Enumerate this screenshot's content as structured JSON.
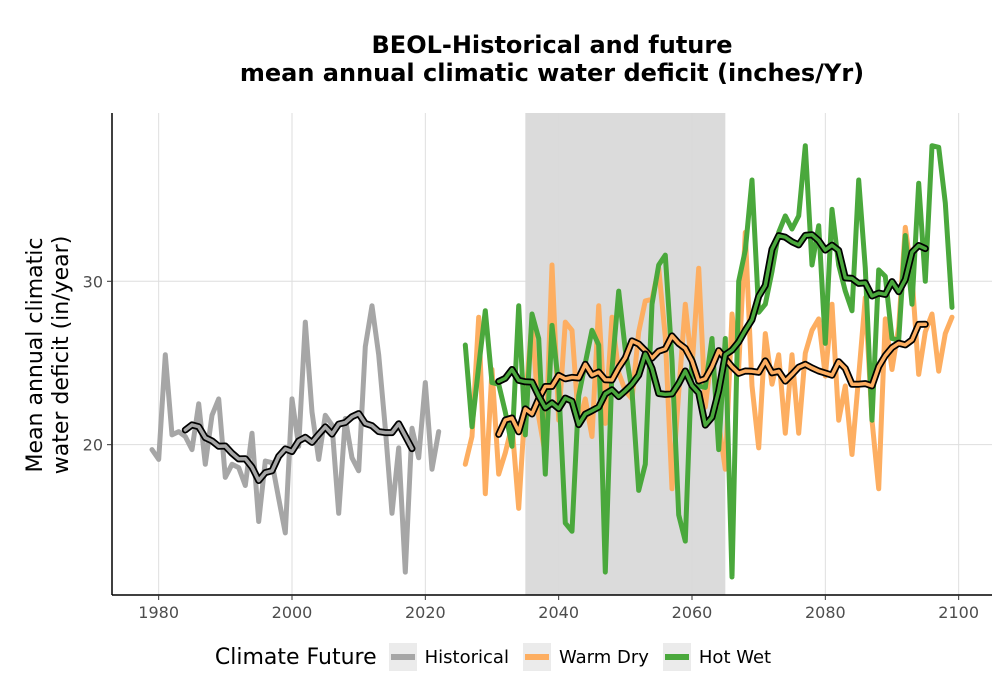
{
  "chart_data": {
    "type": "line",
    "title_line1": "BEOL-Historical and future",
    "title_line2": "mean annual climatic water deficit (inches/Yr)",
    "xlabel": "",
    "ylabel_line1": "Mean annual climatic",
    "ylabel_line2": "water deficit (in/year)",
    "xlim": [
      1973,
      2105
    ],
    "ylim": [
      10.8,
      40.3
    ],
    "x_ticks": [
      1980,
      2000,
      2020,
      2040,
      2060,
      2080,
      2100
    ],
    "y_ticks": [
      20,
      30
    ],
    "grid": true,
    "shaded_period": [
      2035,
      2065
    ],
    "legend_title": "Climate Future",
    "legend_position": "bottom",
    "series": [
      {
        "name": "Historical",
        "color": "#a6a6a6",
        "x": [
          1979,
          1980,
          1981,
          1982,
          1983,
          1984,
          1985,
          1986,
          1987,
          1988,
          1989,
          1990,
          1991,
          1992,
          1993,
          1994,
          1995,
          1996,
          1997,
          1998,
          1999,
          2000,
          2001,
          2002,
          2003,
          2004,
          2005,
          2006,
          2007,
          2008,
          2009,
          2010,
          2011,
          2012,
          2013,
          2014,
          2015,
          2016,
          2017,
          2018,
          2019,
          2020,
          2021,
          2022
        ],
        "values": [
          19.7,
          19.1,
          25.5,
          20.6,
          20.8,
          20.5,
          19.7,
          22.5,
          18.8,
          21.8,
          22.8,
          18.0,
          18.8,
          18.6,
          17.5,
          20.7,
          15.3,
          19.0,
          18.9,
          16.7,
          14.6,
          22.8,
          19.9,
          27.5,
          22.0,
          19.1,
          21.8,
          21.2,
          15.8,
          21.6,
          19.2,
          18.4,
          26.0,
          28.5,
          25.5,
          21.0,
          15.8,
          19.8,
          12.2,
          21.0,
          19.2,
          23.8,
          18.5,
          20.8
        ]
      },
      {
        "name": "Warm Dry",
        "color": "#fdae61",
        "x": [
          2026,
          2027,
          2028,
          2029,
          2030,
          2031,
          2032,
          2033,
          2034,
          2035,
          2036,
          2037,
          2038,
          2039,
          2040,
          2041,
          2042,
          2043,
          2044,
          2045,
          2046,
          2047,
          2048,
          2049,
          2050,
          2051,
          2052,
          2053,
          2054,
          2055,
          2056,
          2057,
          2058,
          2059,
          2060,
          2061,
          2062,
          2063,
          2064,
          2065,
          2066,
          2067,
          2068,
          2069,
          2070,
          2071,
          2072,
          2073,
          2074,
          2075,
          2076,
          2077,
          2078,
          2079,
          2080,
          2081,
          2082,
          2083,
          2084,
          2085,
          2086,
          2087,
          2088,
          2089,
          2090,
          2091,
          2092,
          2093,
          2094,
          2095,
          2096,
          2097,
          2098,
          2099
        ],
        "values": [
          18.8,
          20.5,
          27.8,
          17.0,
          24.6,
          18.2,
          19.5,
          21.2,
          16.1,
          22.6,
          27.6,
          21.7,
          19.4,
          31.0,
          21.5,
          27.5,
          27.0,
          21.3,
          22.8,
          20.5,
          28.5,
          21.3,
          27.8,
          24.4,
          23.3,
          22.8,
          26.9,
          28.8,
          28.9,
          30.8,
          26.6,
          17.3,
          23.2,
          28.6,
          24.7,
          30.8,
          22.3,
          25.7,
          21.3,
          18.5,
          28.0,
          24.7,
          33.0,
          23.6,
          19.8,
          26.8,
          23.7,
          25.5,
          20.7,
          25.5,
          20.7,
          25.6,
          27.0,
          27.7,
          24.2,
          28.6,
          21.5,
          23.6,
          19.4,
          24.2,
          29.0,
          21.5,
          17.3,
          27.7,
          24.6,
          27.2,
          33.3,
          30.3,
          24.3,
          26.9,
          28.0,
          24.5,
          26.8,
          27.8
        ]
      },
      {
        "name": "Hot Wet",
        "color": "#4aa83c",
        "x": [
          2026,
          2027,
          2028,
          2029,
          2030,
          2031,
          2032,
          2033,
          2034,
          2035,
          2036,
          2037,
          2038,
          2039,
          2040,
          2041,
          2042,
          2043,
          2044,
          2045,
          2046,
          2047,
          2048,
          2049,
          2050,
          2051,
          2052,
          2053,
          2054,
          2055,
          2056,
          2057,
          2058,
          2059,
          2060,
          2061,
          2062,
          2063,
          2064,
          2065,
          2066,
          2067,
          2068,
          2069,
          2070,
          2071,
          2072,
          2073,
          2074,
          2075,
          2076,
          2077,
          2078,
          2079,
          2080,
          2081,
          2082,
          2083,
          2084,
          2085,
          2086,
          2087,
          2088,
          2089,
          2090,
          2091,
          2092,
          2093,
          2094,
          2095,
          2096,
          2097,
          2098,
          2099
        ],
        "values": [
          26.1,
          21.1,
          24.8,
          28.2,
          23.8,
          23.7,
          22.0,
          19.9,
          28.5,
          20.6,
          28.0,
          26.5,
          18.2,
          27.3,
          23.6,
          15.2,
          14.7,
          23.0,
          25.0,
          27.0,
          26.1,
          12.2,
          24.6,
          29.4,
          25.8,
          23.3,
          17.2,
          18.8,
          28.6,
          31.0,
          31.6,
          25.2,
          15.7,
          14.1,
          25.3,
          23.6,
          23.5,
          26.5,
          19.7,
          26.5,
          11.9,
          30.0,
          31.9,
          36.2,
          28.1,
          28.6,
          30.6,
          33.0,
          34.0,
          33.2,
          34.0,
          38.3,
          31.0,
          33.4,
          26.2,
          34.4,
          31.0,
          29.4,
          28.2,
          36.2,
          30.8,
          21.5,
          30.7,
          30.3,
          26.5,
          26.4,
          32.8,
          28.6,
          36.0,
          30.0,
          38.3,
          38.2,
          34.8,
          28.4
        ]
      }
    ]
  }
}
